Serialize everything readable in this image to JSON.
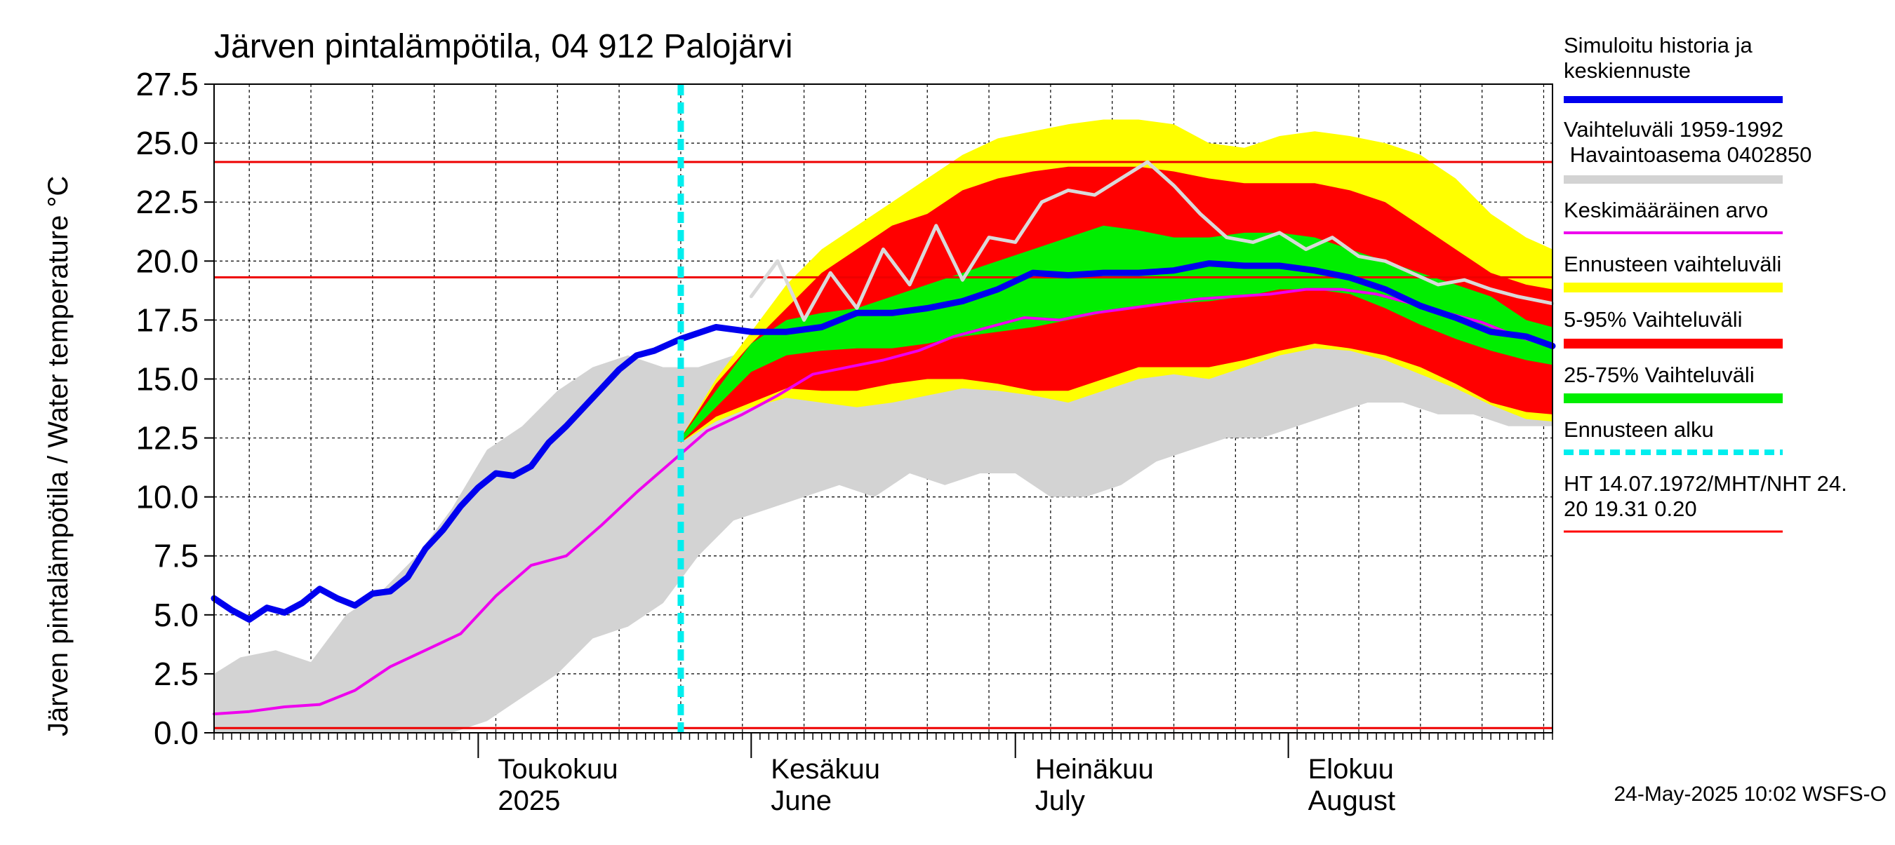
{
  "chart_data": {
    "type": "line",
    "title": "Järven pintalämpötila, 04 912 Palojärvi",
    "ylabel": "Järven pintalämpötila / Water temperature °C",
    "y_ticks": [
      "0.0",
      "2.5",
      "5.0",
      "7.5",
      "10.0",
      "12.5",
      "15.0",
      "17.5",
      "20.0",
      "22.5",
      "25.0",
      "27.5"
    ],
    "ylim": [
      0,
      27.5
    ],
    "xlim": [
      "2025-04-01",
      "2025-08-31"
    ],
    "month_labels": [
      {
        "fi": "Toukokuu",
        "en": "2025",
        "date": "2025-05-01"
      },
      {
        "fi": "Kesäkuu",
        "en": "June",
        "date": "2025-06-01"
      },
      {
        "fi": "Heinäkuu",
        "en": "July",
        "date": "2025-07-01"
      },
      {
        "fi": "Elokuu",
        "en": "August",
        "date": "2025-08-01"
      }
    ],
    "forecast_start": "2025-05-24",
    "hlines": [
      0.2,
      19.31,
      24.2
    ],
    "legend": [
      {
        "label": "Simuloitu historia ja keskiennuste",
        "color": "#0000ee"
      },
      {
        "label": "Vaihteluväli 1959-1992 Havaintoasema 0402850",
        "color": "#d3d3d3"
      },
      {
        "label": "Keskimääräinen arvo",
        "color": "#ee00ee"
      },
      {
        "label": "Ennusteen vaihteluväli",
        "color": "#ffff00"
      },
      {
        "label": "5-95% Vaihteluväli",
        "color": "#ff0000"
      },
      {
        "label": "25-75% Vaihteluväli",
        "color": "#00ee00"
      },
      {
        "label": "Ennusteen alku",
        "color": "#00eeee"
      },
      {
        "label": "HT 14.07.1972/MHT/NHT 24.20 19.31 0.20",
        "color": "#ff0000"
      }
    ],
    "historical_range": {
      "dates": [
        "2025-04-01",
        "2025-04-04",
        "2025-04-08",
        "2025-04-12",
        "2025-04-16",
        "2025-04-20",
        "2025-04-24",
        "2025-04-28",
        "2025-05-02",
        "2025-05-06",
        "2025-05-10",
        "2025-05-14",
        "2025-05-18",
        "2025-05-22",
        "2025-05-26",
        "2025-05-30",
        "2025-06-03",
        "2025-06-07",
        "2025-06-11",
        "2025-06-15",
        "2025-06-19",
        "2025-06-23",
        "2025-06-27",
        "2025-07-01",
        "2025-07-05",
        "2025-07-09",
        "2025-07-13",
        "2025-07-17",
        "2025-07-21",
        "2025-07-25",
        "2025-07-29",
        "2025-08-02",
        "2025-08-06",
        "2025-08-10",
        "2025-08-14",
        "2025-08-18",
        "2025-08-22",
        "2025-08-26",
        "2025-08-31"
      ],
      "low": [
        0.0,
        0.0,
        0.0,
        0.0,
        0.0,
        0.0,
        0.0,
        0.0,
        0.5,
        1.5,
        2.5,
        4.0,
        4.5,
        5.5,
        7.5,
        9.0,
        9.5,
        10.0,
        10.5,
        10.0,
        11.0,
        10.5,
        11.0,
        11.0,
        10.0,
        10.0,
        10.5,
        11.5,
        12.0,
        12.5,
        12.5,
        13.0,
        13.5,
        14.0,
        14.0,
        13.5,
        13.5,
        13.0,
        13.0
      ],
      "high": [
        2.5,
        3.2,
        3.5,
        3.0,
        5.0,
        6.0,
        7.5,
        9.5,
        12.0,
        13.0,
        14.5,
        15.5,
        16.0,
        15.5,
        15.5,
        16.0,
        16.5,
        17.5,
        19.0,
        21.0,
        21.5,
        22.5,
        23.0,
        23.5,
        24.0,
        24.2,
        24.2,
        23.5,
        23.0,
        22.5,
        21.5,
        21.0,
        21.0,
        20.0,
        19.5,
        19.0,
        18.5,
        18.0,
        17.5
      ]
    },
    "forecast_bands": {
      "dates": [
        "2025-05-24",
        "2025-05-28",
        "2025-06-01",
        "2025-06-05",
        "2025-06-09",
        "2025-06-13",
        "2025-06-17",
        "2025-06-21",
        "2025-06-25",
        "2025-06-29",
        "2025-07-03",
        "2025-07-07",
        "2025-07-11",
        "2025-07-15",
        "2025-07-19",
        "2025-07-23",
        "2025-07-27",
        "2025-07-31",
        "2025-08-04",
        "2025-08-08",
        "2025-08-12",
        "2025-08-16",
        "2025-08-20",
        "2025-08-24",
        "2025-08-28",
        "2025-08-31"
      ],
      "outer_low": [
        12.3,
        13.2,
        13.8,
        14.2,
        14.0,
        13.8,
        14.0,
        14.3,
        14.6,
        14.5,
        14.3,
        14.0,
        14.5,
        15.0,
        15.2,
        15.0,
        15.5,
        16.0,
        16.3,
        16.2,
        15.8,
        15.2,
        14.6,
        13.9,
        13.3,
        13.2
      ],
      "outer_high": [
        12.5,
        15.0,
        17.0,
        19.0,
        20.5,
        21.5,
        22.5,
        23.5,
        24.5,
        25.2,
        25.5,
        25.8,
        26.0,
        26.0,
        25.8,
        25.0,
        24.8,
        25.3,
        25.5,
        25.3,
        25.0,
        24.5,
        23.5,
        22.0,
        21.0,
        20.5
      ],
      "p05": [
        12.3,
        13.4,
        14.0,
        14.6,
        14.5,
        14.5,
        14.8,
        15.0,
        15.0,
        14.8,
        14.5,
        14.5,
        15.0,
        15.5,
        15.5,
        15.5,
        15.8,
        16.2,
        16.5,
        16.3,
        16.0,
        15.5,
        14.8,
        14.0,
        13.6,
        13.5
      ],
      "p95": [
        12.5,
        14.8,
        16.5,
        18.0,
        19.5,
        20.5,
        21.5,
        22.0,
        23.0,
        23.5,
        23.8,
        24.0,
        24.0,
        24.0,
        23.8,
        23.5,
        23.3,
        23.3,
        23.3,
        23.0,
        22.5,
        21.5,
        20.5,
        19.5,
        19.0,
        18.8
      ],
      "p25": [
        12.3,
        13.8,
        15.3,
        16.0,
        16.2,
        16.3,
        16.3,
        16.5,
        16.8,
        17.0,
        17.2,
        17.5,
        17.8,
        18.0,
        18.2,
        18.3,
        18.5,
        18.8,
        18.8,
        18.6,
        18.0,
        17.3,
        16.7,
        16.2,
        15.8,
        15.6
      ],
      "p75": [
        12.5,
        14.5,
        16.5,
        17.5,
        17.8,
        18.0,
        18.5,
        19.0,
        19.5,
        20.0,
        20.5,
        21.0,
        21.5,
        21.3,
        21.0,
        21.0,
        21.2,
        21.2,
        21.0,
        20.5,
        20.0,
        19.5,
        19.0,
        18.5,
        17.5,
        17.2
      ]
    },
    "series": [
      {
        "name": "Simuloitu historia ja keskiennuste",
        "dates": [
          "2025-04-01",
          "2025-04-03",
          "2025-04-05",
          "2025-04-07",
          "2025-04-09",
          "2025-04-11",
          "2025-04-13",
          "2025-04-15",
          "2025-04-17",
          "2025-04-19",
          "2025-04-21",
          "2025-04-23",
          "2025-04-25",
          "2025-04-27",
          "2025-04-29",
          "2025-05-01",
          "2025-05-03",
          "2025-05-05",
          "2025-05-07",
          "2025-05-09",
          "2025-05-11",
          "2025-05-13",
          "2025-05-15",
          "2025-05-17",
          "2025-05-19",
          "2025-05-21",
          "2025-05-24",
          "2025-05-28",
          "2025-06-01",
          "2025-06-05",
          "2025-06-09",
          "2025-06-13",
          "2025-06-17",
          "2025-06-21",
          "2025-06-25",
          "2025-06-29",
          "2025-07-03",
          "2025-07-07",
          "2025-07-11",
          "2025-07-15",
          "2025-07-19",
          "2025-07-23",
          "2025-07-27",
          "2025-07-31",
          "2025-08-04",
          "2025-08-08",
          "2025-08-12",
          "2025-08-16",
          "2025-08-20",
          "2025-08-24",
          "2025-08-28",
          "2025-08-31"
        ],
        "values": [
          5.7,
          5.2,
          4.8,
          5.3,
          5.1,
          5.5,
          6.1,
          5.7,
          5.4,
          5.9,
          6.0,
          6.6,
          7.8,
          8.6,
          9.6,
          10.4,
          11.0,
          10.9,
          11.3,
          12.3,
          13.0,
          13.8,
          14.6,
          15.4,
          16.0,
          16.2,
          16.7,
          17.2,
          17.0,
          17.0,
          17.2,
          17.8,
          17.8,
          18.0,
          18.3,
          18.8,
          19.5,
          19.4,
          19.5,
          19.5,
          19.6,
          19.9,
          19.8,
          19.8,
          19.6,
          19.3,
          18.8,
          18.1,
          17.6,
          17.0,
          16.8,
          16.4
        ]
      },
      {
        "name": "Keskimääräinen arvo",
        "dates": [
          "2025-04-01",
          "2025-04-05",
          "2025-04-09",
          "2025-04-13",
          "2025-04-17",
          "2025-04-21",
          "2025-04-25",
          "2025-04-29",
          "2025-05-03",
          "2025-05-07",
          "2025-05-11",
          "2025-05-15",
          "2025-05-19",
          "2025-05-23",
          "2025-05-27",
          "2025-05-31",
          "2025-06-04",
          "2025-06-08",
          "2025-06-12",
          "2025-06-16",
          "2025-06-20",
          "2025-06-24",
          "2025-06-28",
          "2025-07-02",
          "2025-07-06",
          "2025-07-10",
          "2025-07-14",
          "2025-07-18",
          "2025-07-22",
          "2025-07-26",
          "2025-07-30",
          "2025-08-03",
          "2025-08-07",
          "2025-08-11",
          "2025-08-15",
          "2025-08-19",
          "2025-08-23",
          "2025-08-27",
          "2025-08-31"
        ],
        "values": [
          0.8,
          0.9,
          1.1,
          1.2,
          1.8,
          2.8,
          3.5,
          4.2,
          5.8,
          7.1,
          7.5,
          8.8,
          10.2,
          11.5,
          12.8,
          13.5,
          14.3,
          15.2,
          15.5,
          15.8,
          16.2,
          16.8,
          17.2,
          17.6,
          17.5,
          17.8,
          18.0,
          18.2,
          18.4,
          18.5,
          18.6,
          18.8,
          18.8,
          18.6,
          18.2,
          17.8,
          17.4,
          16.8,
          16.4
        ]
      },
      {
        "name": "Vaihteluväli 1959-1992 Havaintoasema 0402850",
        "dates": [
          "2025-06-01",
          "2025-06-04",
          "2025-06-07",
          "2025-06-10",
          "2025-06-13",
          "2025-06-16",
          "2025-06-19",
          "2025-06-22",
          "2025-06-25",
          "2025-06-28",
          "2025-07-01",
          "2025-07-04",
          "2025-07-07",
          "2025-07-10",
          "2025-07-13",
          "2025-07-16",
          "2025-07-19",
          "2025-07-22",
          "2025-07-25",
          "2025-07-28",
          "2025-07-31",
          "2025-08-03",
          "2025-08-06",
          "2025-08-09",
          "2025-08-12",
          "2025-08-15",
          "2025-08-18",
          "2025-08-21",
          "2025-08-24",
          "2025-08-27",
          "2025-08-31"
        ],
        "values": [
          18.5,
          20.0,
          17.5,
          19.5,
          18.0,
          20.5,
          19.0,
          21.5,
          19.2,
          21.0,
          20.8,
          22.5,
          23.0,
          22.8,
          23.5,
          24.2,
          23.2,
          22.0,
          21.0,
          20.8,
          21.2,
          20.5,
          21.0,
          20.2,
          20.0,
          19.5,
          19.0,
          19.2,
          18.8,
          18.5,
          18.2
        ]
      }
    ]
  },
  "timestamp": "24-May-2025 10:02 WSFS-O"
}
